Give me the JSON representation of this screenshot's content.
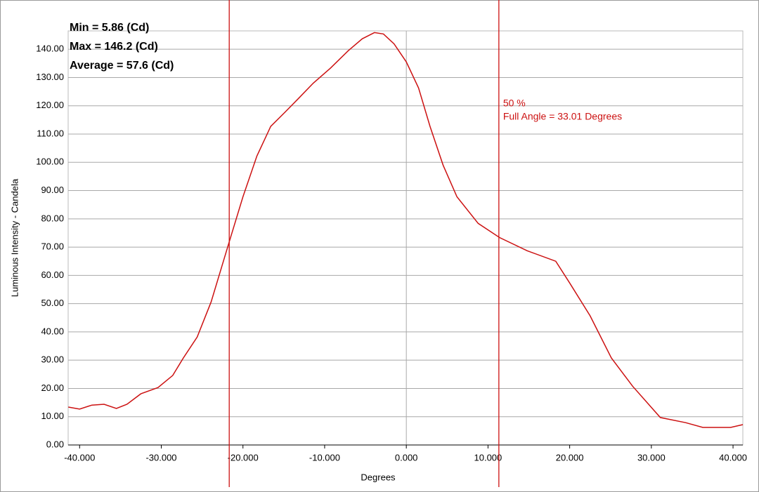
{
  "chart_data": {
    "type": "line",
    "stats": [
      "Min = 5.86 (Cd)",
      "Max = 146.2 (Cd)",
      "Average = 57.6 (Cd)"
    ],
    "xlabel": "Degrees",
    "ylabel": "Luminous Intensity - Candela",
    "color": "#cc1111",
    "x": [
      -41.38,
      -40,
      -38.5,
      -37,
      -35.5,
      -34.2,
      -32.5,
      -30.4,
      -28.6,
      -27.3,
      -25.6,
      -23.9,
      -21.7,
      -20,
      -18.3,
      -16.6,
      -14.9,
      -13.2,
      -11.4,
      -9.3,
      -7.1,
      -5.4,
      -3.9,
      -2.8,
      -1.5,
      0,
      1.5,
      2.9,
      4.5,
      6.2,
      8.8,
      11.4,
      14.8,
      18.3,
      20,
      22.5,
      25.1,
      27.7,
      31.1,
      34.2,
      36.3,
      39.7,
      41.2
    ],
    "values": [
      13.4,
      12.7,
      14.1,
      14.4,
      12.9,
      14.4,
      18.1,
      20.3,
      24.6,
      30.8,
      38.2,
      50.6,
      71.7,
      87.8,
      102.2,
      112.7,
      117.6,
      122.6,
      128,
      133.3,
      139.5,
      143.7,
      145.9,
      145.4,
      141.9,
      135.5,
      126.3,
      112.7,
      99,
      87.8,
      78.4,
      73.4,
      68.7,
      65,
      57.3,
      45.7,
      30.8,
      20.8,
      9.7,
      7.9,
      6.2,
      6.2,
      7.2
    ],
    "markers": [
      -21.68,
      11.33
    ],
    "annotation": [
      "50 %",
      "Full Angle = 33.01 Degrees"
    ],
    "zero_line": true,
    "grid": true,
    "xlim": [
      -41.4,
      41.2
    ],
    "ylim": [
      0,
      146.5
    ],
    "xticks": [
      {
        "value": -40,
        "label": "-40.000"
      },
      {
        "value": -30,
        "label": "-30.000"
      },
      {
        "value": -20,
        "label": "-20.000"
      },
      {
        "value": -10,
        "label": "-10.000"
      },
      {
        "value": 0,
        "label": "0.000"
      },
      {
        "value": 10,
        "label": "10.000"
      },
      {
        "value": 20,
        "label": "20.000"
      },
      {
        "value": 30,
        "label": "30.000"
      },
      {
        "value": 40,
        "label": "40.000"
      }
    ],
    "yticks": [
      {
        "value": 0,
        "label": "0.00"
      },
      {
        "value": 10,
        "label": "10.00"
      },
      {
        "value": 20,
        "label": "20.00"
      },
      {
        "value": 30,
        "label": "30.00"
      },
      {
        "value": 40,
        "label": "40.00"
      },
      {
        "value": 50,
        "label": "50.00"
      },
      {
        "value": 60,
        "label": "60.00"
      },
      {
        "value": 70,
        "label": "70.00"
      },
      {
        "value": 80,
        "label": "80.00"
      },
      {
        "value": 90,
        "label": "90.00"
      },
      {
        "value": 100,
        "label": "100.00"
      },
      {
        "value": 110,
        "label": "110.00"
      },
      {
        "value": 120,
        "label": "120.00"
      },
      {
        "value": 130,
        "label": "130.00"
      },
      {
        "value": 140,
        "label": "140.00"
      }
    ]
  }
}
